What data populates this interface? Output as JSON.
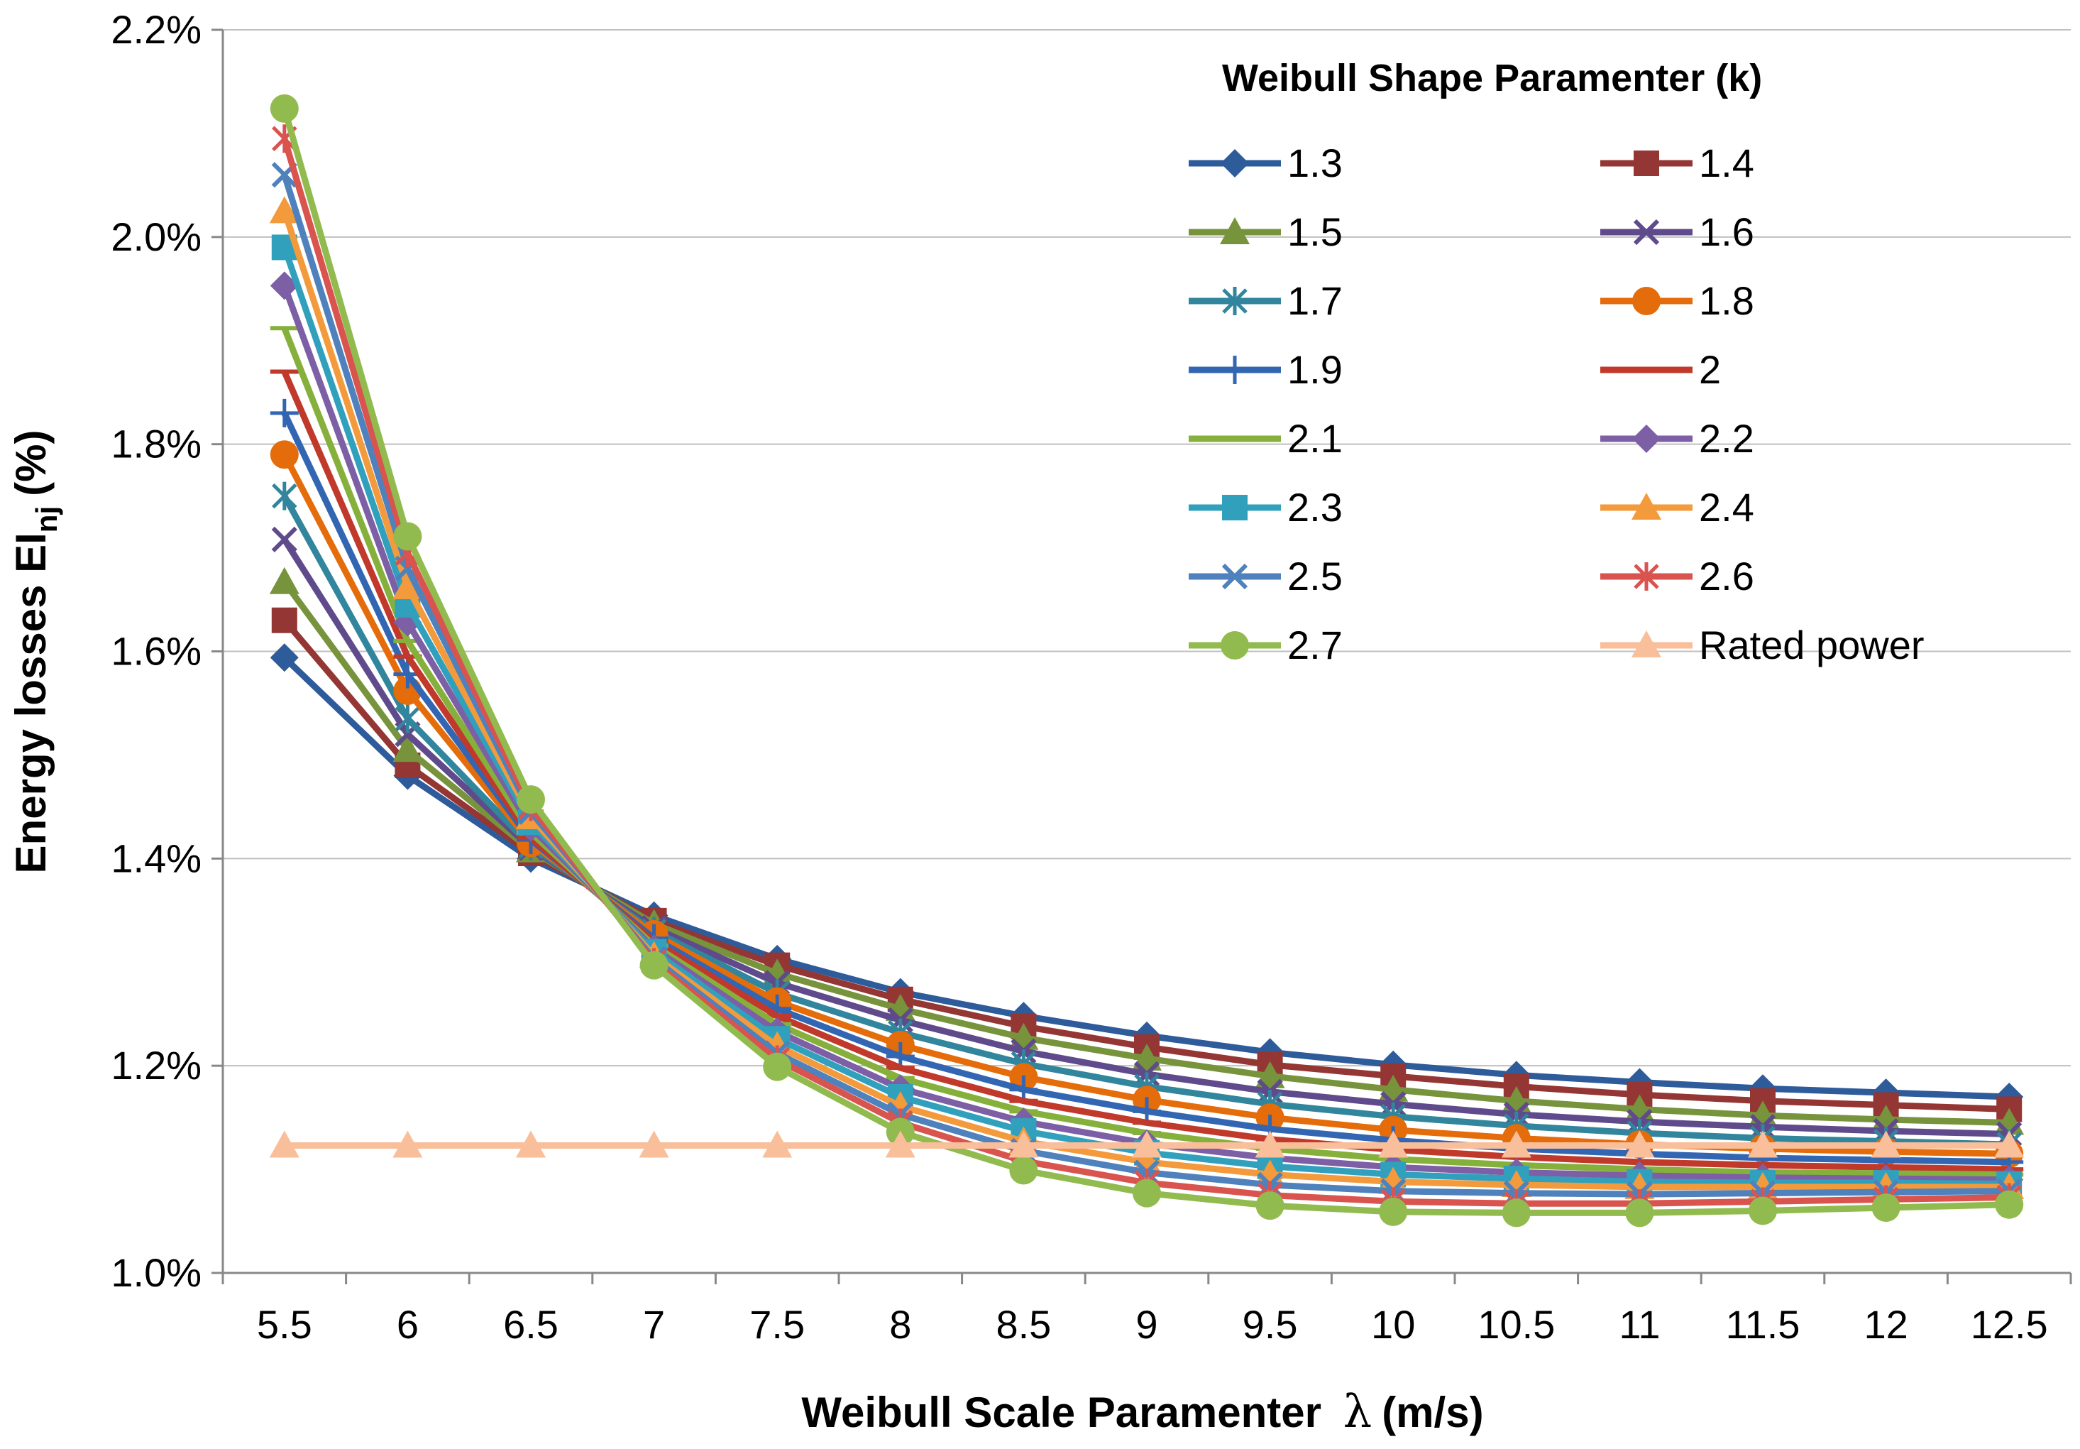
{
  "chart_data": {
    "type": "line",
    "xlabel": "Weibull Scale Paramenter",
    "xlabel_symbol": "λ",
    "xlabel_unit": "(m/s)",
    "ylabel_main": "Energy losses EI",
    "ylabel_sub": "nj",
    "ylabel_unit": "(%)",
    "legend_title": "Weibull Shape Paramenter  (k)",
    "legend_position": "top-right",
    "grid": "horizontal",
    "x": [
      5.5,
      6,
      6.5,
      7,
      7.5,
      8,
      8.5,
      9,
      9.5,
      10,
      10.5,
      11,
      11.5,
      12,
      12.5
    ],
    "x_tick_labels": [
      "5.5",
      "6",
      "6.5",
      "7",
      "7.5",
      "8",
      "8.5",
      "9",
      "9.5",
      "10",
      "10.5",
      "11",
      "11.5",
      "12",
      "12.5"
    ],
    "ylim": [
      1.0,
      2.2
    ],
    "y_ticks": [
      1.0,
      1.2,
      1.4,
      1.6,
      1.8,
      2.0,
      2.2
    ],
    "y_tick_labels": [
      "1.0%",
      "1.2%",
      "1.4%",
      "1.6%",
      "1.8%",
      "2.0%",
      "2.2%"
    ],
    "series": [
      {
        "name": "1.3",
        "color": "#2e5b9a",
        "marker": "diamond",
        "values": [
          1.594,
          1.48,
          1.4,
          1.345,
          1.303,
          1.271,
          1.248,
          1.229,
          1.213,
          1.201,
          1.191,
          1.184,
          1.178,
          1.174,
          1.17
        ]
      },
      {
        "name": "1.4",
        "color": "#943634",
        "marker": "square",
        "values": [
          1.63,
          1.49,
          1.405,
          1.34,
          1.297,
          1.264,
          1.238,
          1.218,
          1.201,
          1.19,
          1.18,
          1.172,
          1.166,
          1.162,
          1.158
        ]
      },
      {
        "name": "1.5",
        "color": "#77933c",
        "marker": "triangle",
        "values": [
          1.667,
          1.505,
          1.408,
          1.337,
          1.289,
          1.255,
          1.227,
          1.207,
          1.19,
          1.177,
          1.166,
          1.158,
          1.152,
          1.148,
          1.145
        ]
      },
      {
        "name": "1.6",
        "color": "#5f4b8b",
        "marker": "x",
        "values": [
          1.708,
          1.52,
          1.41,
          1.333,
          1.28,
          1.244,
          1.214,
          1.192,
          1.175,
          1.163,
          1.153,
          1.146,
          1.141,
          1.137,
          1.134
        ]
      },
      {
        "name": "1.7",
        "color": "#31859c",
        "marker": "star",
        "values": [
          1.75,
          1.535,
          1.412,
          1.33,
          1.27,
          1.232,
          1.202,
          1.18,
          1.163,
          1.151,
          1.142,
          1.135,
          1.13,
          1.127,
          1.124
        ]
      },
      {
        "name": "1.8",
        "color": "#e46c0a",
        "marker": "circle",
        "values": [
          1.79,
          1.562,
          1.415,
          1.327,
          1.262,
          1.22,
          1.189,
          1.167,
          1.15,
          1.138,
          1.13,
          1.124,
          1.12,
          1.117,
          1.115
        ]
      },
      {
        "name": "1.9",
        "color": "#3366b2",
        "marker": "plus",
        "values": [
          1.83,
          1.578,
          1.418,
          1.323,
          1.255,
          1.209,
          1.177,
          1.156,
          1.139,
          1.128,
          1.12,
          1.115,
          1.111,
          1.109,
          1.107
        ]
      },
      {
        "name": "2",
        "color": "#c0392b",
        "marker": "dash",
        "values": [
          1.87,
          1.595,
          1.42,
          1.32,
          1.248,
          1.198,
          1.166,
          1.145,
          1.129,
          1.119,
          1.112,
          1.107,
          1.104,
          1.102,
          1.1
        ]
      },
      {
        "name": "2.1",
        "color": "#86b03c",
        "marker": "dash",
        "values": [
          1.912,
          1.61,
          1.425,
          1.316,
          1.24,
          1.188,
          1.156,
          1.135,
          1.12,
          1.11,
          1.104,
          1.1,
          1.097,
          1.096,
          1.095
        ]
      },
      {
        "name": "2.2",
        "color": "#7c5fa5",
        "marker": "diamond",
        "values": [
          1.953,
          1.628,
          1.43,
          1.313,
          1.233,
          1.178,
          1.146,
          1.125,
          1.111,
          1.102,
          1.097,
          1.094,
          1.092,
          1.091,
          1.09
        ]
      },
      {
        "name": "2.3",
        "color": "#31a0bd",
        "marker": "square",
        "values": [
          1.99,
          1.645,
          1.435,
          1.31,
          1.226,
          1.17,
          1.137,
          1.116,
          1.103,
          1.095,
          1.091,
          1.088,
          1.087,
          1.087,
          1.086
        ]
      },
      {
        "name": "2.4",
        "color": "#f39a3c",
        "marker": "triangle",
        "values": [
          2.025,
          1.662,
          1.44,
          1.306,
          1.219,
          1.161,
          1.127,
          1.107,
          1.095,
          1.088,
          1.085,
          1.083,
          1.083,
          1.083,
          1.083
        ]
      },
      {
        "name": "2.5",
        "color": "#4f81bd",
        "marker": "x",
        "values": [
          2.06,
          1.68,
          1.445,
          1.303,
          1.212,
          1.153,
          1.118,
          1.097,
          1.085,
          1.079,
          1.077,
          1.076,
          1.077,
          1.078,
          1.079
        ]
      },
      {
        "name": "2.6",
        "color": "#d9534f",
        "marker": "star",
        "values": [
          2.095,
          1.695,
          1.45,
          1.3,
          1.206,
          1.145,
          1.108,
          1.087,
          1.075,
          1.069,
          1.067,
          1.067,
          1.069,
          1.071,
          1.073
        ]
      },
      {
        "name": "2.7",
        "color": "#92bb4f",
        "marker": "circle",
        "values": [
          2.124,
          1.711,
          1.457,
          1.297,
          1.199,
          1.136,
          1.099,
          1.077,
          1.065,
          1.059,
          1.058,
          1.058,
          1.06,
          1.063,
          1.066
        ]
      },
      {
        "name": "Rated power",
        "color": "#f9be9a",
        "marker": "triangle",
        "values": [
          1.123,
          1.123,
          1.123,
          1.123,
          1.123,
          1.123,
          1.123,
          1.123,
          1.123,
          1.123,
          1.123,
          1.123,
          1.123,
          1.123,
          1.123
        ]
      }
    ]
  }
}
